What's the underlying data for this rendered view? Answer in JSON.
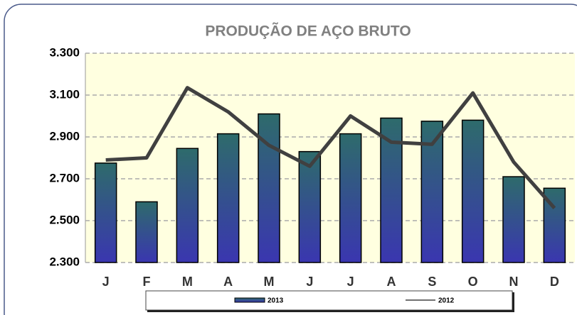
{
  "chart_data": {
    "type": "bar_line",
    "title": "PRODUÇÃO DE AÇO BRUTO",
    "categories": [
      "J",
      "F",
      "M",
      "A",
      "M",
      "J",
      "J",
      "A",
      "S",
      "O",
      "N",
      "D"
    ],
    "series": [
      {
        "name": "2013",
        "type": "bar",
        "color": "#2e6b6b",
        "values": [
          2775,
          2590,
          2845,
          2915,
          3010,
          2830,
          2915,
          2990,
          2975,
          2980,
          2710,
          2655
        ]
      },
      {
        "name": "2012",
        "type": "line",
        "color": "#404040",
        "values": [
          2790,
          2800,
          3135,
          3020,
          2860,
          2760,
          3000,
          2875,
          2865,
          3110,
          2780,
          2560
        ]
      }
    ],
    "ylim": [
      2300,
      3300
    ],
    "yticks": [
      {
        "value": 2300,
        "label": "2.300"
      },
      {
        "value": 2500,
        "label": "2.500"
      },
      {
        "value": 2700,
        "label": "2.700"
      },
      {
        "value": 2900,
        "label": "2.900"
      },
      {
        "value": 3100,
        "label": "3.100"
      },
      {
        "value": 3300,
        "label": "3.300"
      }
    ],
    "grid": true,
    "legend": "bottom"
  }
}
